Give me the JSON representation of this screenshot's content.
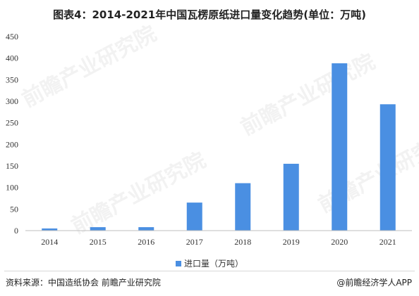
{
  "title": "图表4：2014-2021年中国瓦楞原纸进口量变化趋势(单位：万吨)",
  "chart_data": {
    "type": "bar",
    "categories": [
      "2014",
      "2015",
      "2016",
      "2017",
      "2018",
      "2019",
      "2020",
      "2021"
    ],
    "series": [
      {
        "name": "进口量（万吨）",
        "values": [
          5,
          8,
          8,
          65,
          110,
          155,
          388,
          293
        ]
      }
    ],
    "yticks": [
      "0",
      "50",
      "100",
      "150",
      "200",
      "250",
      "300",
      "350",
      "400",
      "450"
    ],
    "ylim": [
      0,
      450
    ],
    "grid": false,
    "legend_position": "bottom",
    "bar_color": "#4a8fe2"
  },
  "footer": {
    "source": "资料来源：中国造纸协会 前瞻产业研究院",
    "brand": "@前瞻经济学人APP",
    "brand_icon": "at-icon"
  },
  "watermark": {
    "text": "前瞻产业研究院"
  }
}
